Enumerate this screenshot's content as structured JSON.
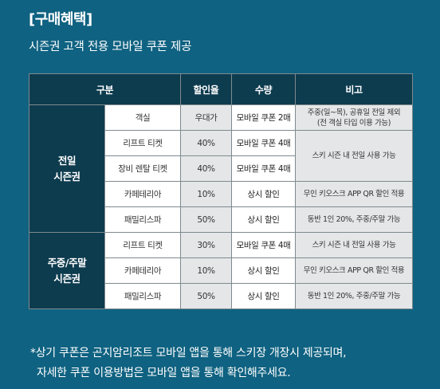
{
  "section": {
    "heading": "[구매혜택]",
    "subtitle": "시즌권 고객 전용 모바일 쿠폰 제공"
  },
  "table": {
    "headers": {
      "category": "구분",
      "discount": "할인율",
      "quantity": "수량",
      "note": "비고"
    },
    "groups": [
      {
        "label_line1": "전일",
        "label_line2": "시즌권",
        "rows": [
          {
            "item": "객실",
            "rate": "우대가",
            "qty": "모바일 쿠폰 2매",
            "note_line1": "주중(일~목), 공휴일 전일 제외",
            "note_line2": "(전 객실 타입 이용 가능)"
          },
          {
            "item": "리프트 티켓",
            "rate": "40%",
            "qty": "모바일 쿠폰 4매"
          },
          {
            "item": "장비 렌탈 티켓",
            "rate": "40%",
            "qty": "모바일 쿠폰 4매"
          },
          {
            "item": "카페테리아",
            "rate": "10%",
            "qty": "상시 할인",
            "note": "무인 키오스크 APP QR 할인 적용"
          },
          {
            "item": "패밀리스파",
            "rate": "50%",
            "qty": "상시 할인",
            "note": "동반 1인 20%, 주중/주말 가능"
          }
        ],
        "merged_note": "스키 시즌 내 전일 사용 가능"
      },
      {
        "label_line1": "주중/주말",
        "label_line2": "시즌권",
        "rows": [
          {
            "item": "리프트 티켓",
            "rate": "30%",
            "qty": "모바일 쿠폰 4매",
            "note": "스키 시즌 내 전일 사용 가능"
          },
          {
            "item": "카페테리아",
            "rate": "10%",
            "qty": "상시 할인",
            "note": "무인 키오스크 APP QR 할인 적용"
          },
          {
            "item": "패밀리스파",
            "rate": "50%",
            "qty": "상시 할인",
            "note": "동반 1인 20%, 주중/주말 가능"
          }
        ]
      }
    ]
  },
  "footnote": {
    "line1": "*상기 쿠폰은 곤지암리조트 모바일 앱을 통해 스키장 개장시 제공되며,",
    "line2": "자세한 쿠폰 이용방법은 모바일 앱을 통해 확인해주세요."
  },
  "colors": {
    "background": "#0f6281",
    "header_cell": "#0e3c4f",
    "shaded_cell": "#e4e6e7",
    "white_cell": "#ffffff"
  }
}
